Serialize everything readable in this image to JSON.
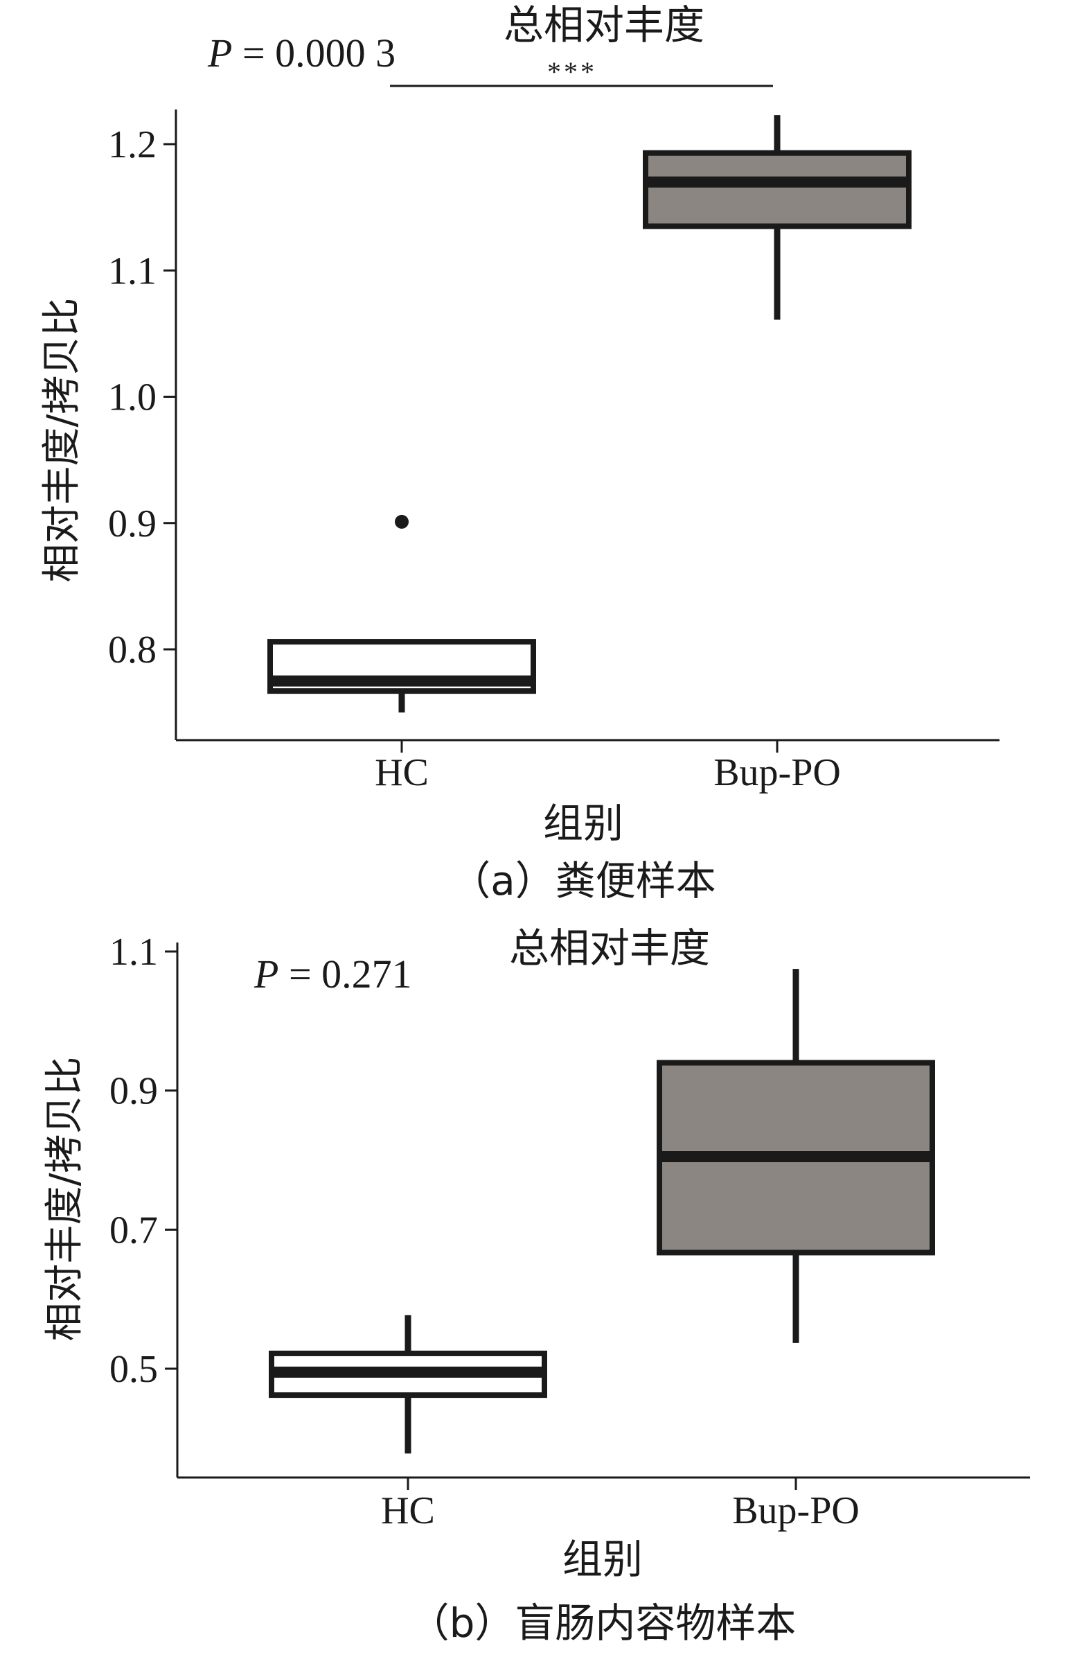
{
  "chart_data": [
    {
      "panel": "a",
      "type": "boxplot",
      "title": "总相对丰度",
      "caption": "（a）粪便样本",
      "xlabel": "组别",
      "ylabel": "相对丰度/拷贝比",
      "categories": [
        "HC",
        "Bup-PO"
      ],
      "ylim": [
        0.73,
        1.245
      ],
      "yticks": [
        "0.8",
        "0.9",
        "1.0",
        "1.1",
        "1.2"
      ],
      "p_label": "P",
      "p_text": " = 0.000 3",
      "significance": "***",
      "grid": false,
      "series": [
        {
          "group": "HC",
          "whisker_low": 0.75,
          "q1": 0.767,
          "median": 0.775,
          "q3": 0.806,
          "whisker_high": 0.806,
          "outliers": [
            0.901
          ],
          "fill": "#ffffff"
        },
        {
          "group": "Bup-PO",
          "whisker_low": 1.061,
          "q1": 1.135,
          "median": 1.17,
          "q3": 1.193,
          "whisker_high": 1.223,
          "outliers": [],
          "fill": "#8c8683"
        }
      ]
    },
    {
      "panel": "b",
      "type": "boxplot",
      "title": "总相对丰度",
      "caption": "（b）盲肠内容物样本",
      "xlabel": "组别",
      "ylabel": "相对丰度/拷贝比",
      "categories": [
        "HC",
        "Bup-PO"
      ],
      "ylim": [
        0.355,
        1.105
      ],
      "yticks": [
        "0.5",
        "0.7",
        "0.9",
        "1.1"
      ],
      "p_label": "P",
      "p_text": " = 0.271",
      "significance": "",
      "grid": false,
      "series": [
        {
          "group": "HC",
          "whisker_low": 0.378,
          "q1": 0.462,
          "median": 0.495,
          "q3": 0.522,
          "whisker_high": 0.577,
          "outliers": [],
          "fill": "#ffffff"
        },
        {
          "group": "Bup-PO",
          "whisker_low": 0.537,
          "q1": 0.667,
          "median": 0.805,
          "q3": 0.94,
          "whisker_high": 1.075,
          "outliers": [],
          "fill": "#8c8683"
        }
      ]
    }
  ]
}
